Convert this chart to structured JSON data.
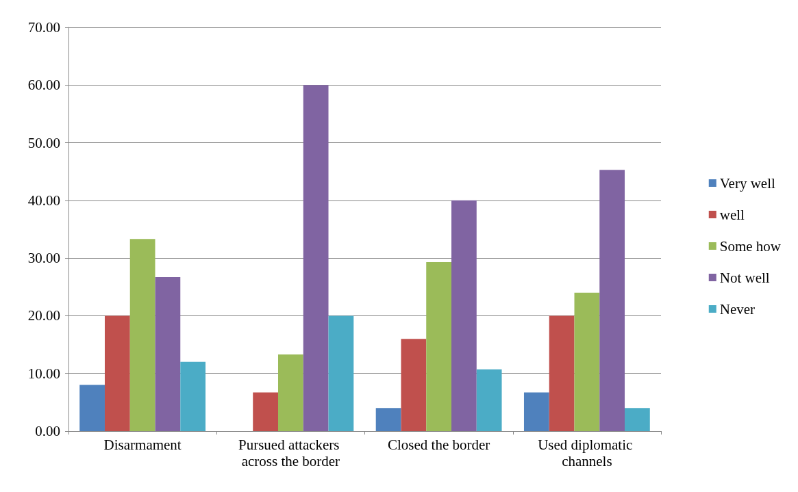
{
  "chart_data": {
    "type": "bar",
    "categories": [
      "Disarmament",
      "Pursued attackers across the border",
      "Closed the border",
      "Used diplomatic channels"
    ],
    "series": [
      {
        "name": "Very well",
        "color": "#4f81bd",
        "values": [
          8,
          0,
          4,
          6.7
        ]
      },
      {
        "name": "well",
        "color": "#c0504d",
        "values": [
          20,
          6.7,
          16,
          20
        ]
      },
      {
        "name": "Some how",
        "color": "#9bbb59",
        "values": [
          33.3,
          13.3,
          29.3,
          24
        ]
      },
      {
        "name": "Not well",
        "color": "#8064a2",
        "values": [
          26.7,
          60,
          40,
          45.3
        ]
      },
      {
        "name": "Never",
        "color": "#4bacc6",
        "values": [
          12,
          20,
          10.7,
          4
        ]
      }
    ],
    "ylim": [
      0,
      70
    ],
    "yticks": [
      {
        "value": 0,
        "label": "0.00"
      },
      {
        "value": 10,
        "label": "10.00"
      },
      {
        "value": 20,
        "label": "20.00"
      },
      {
        "value": 30,
        "label": "30.00"
      },
      {
        "value": 40,
        "label": "40.00"
      },
      {
        "value": 50,
        "label": "50.00"
      },
      {
        "value": 60,
        "label": "60.00"
      },
      {
        "value": 70,
        "label": "70.00"
      }
    ],
    "grid": "y",
    "legend": "right"
  }
}
